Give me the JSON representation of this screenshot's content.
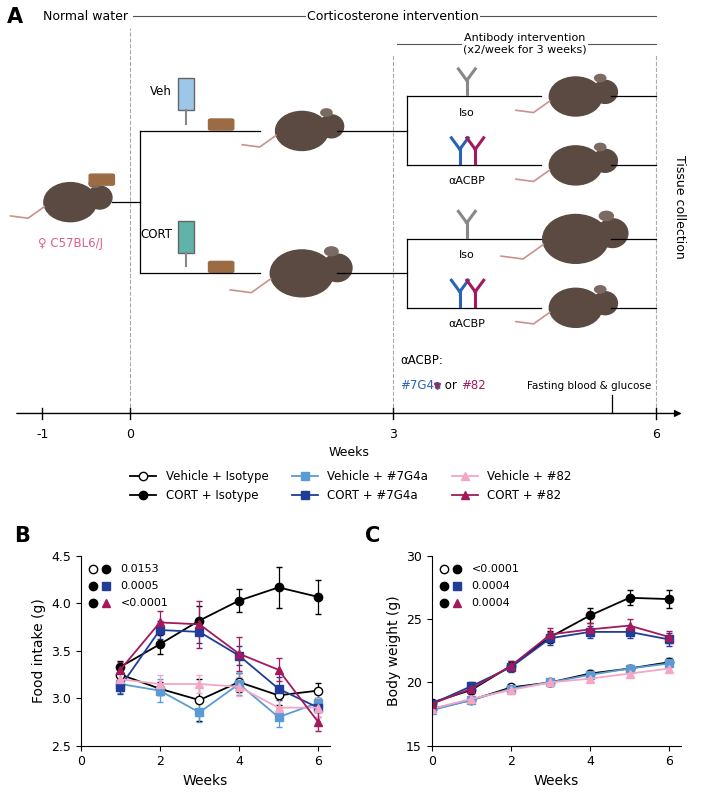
{
  "diagram": {
    "panel": "A",
    "phases": {
      "normal": "Normal water",
      "cort": "Corticosterone intervention",
      "antibody": "Antibody intervention\n(x2/week for 3 weeks)"
    },
    "mouse": "♀ C57BL6/J",
    "arms": [
      "Veh",
      "CORT"
    ],
    "treatments": [
      "Iso",
      "αACBP"
    ],
    "antibody_note": {
      "title": "αACBP:",
      "options": [
        "#7G4a",
        "#82"
      ],
      "joiner": "or",
      "colors": [
        "#2a62b8",
        "#a3195b"
      ]
    },
    "events": [
      {
        "week": 5.5,
        "label": "Fasting blood & glucose"
      },
      {
        "week": 6,
        "label": "Tissue collection"
      }
    ],
    "timeline": {
      "label": "Weeks",
      "ticks": [
        -1,
        0,
        3,
        6
      ]
    }
  },
  "chart_data": [
    {
      "type": "line",
      "panel": "B",
      "xlabel": "Weeks",
      "ylabel": "Food intake (g)",
      "x": [
        1,
        2,
        3,
        4,
        5,
        6
      ],
      "xlim": [
        0,
        6.3
      ],
      "xticks": [
        0,
        2,
        4,
        6
      ],
      "ylim": [
        2.5,
        4.5
      ],
      "yticks": [
        2.5,
        3.0,
        3.5,
        4.0,
        4.5
      ],
      "legend": "upper center",
      "series": [
        {
          "name": "Vehicle + Isotype",
          "color": "#ffffff",
          "marker": "circle",
          "values": [
            3.25,
            3.1,
            2.98,
            3.17,
            3.03,
            3.08
          ],
          "errors": [
            0.08,
            0.07,
            0.22,
            0.1,
            0.1,
            0.08
          ]
        },
        {
          "name": "CORT + Isotype",
          "color": "#000000",
          "marker": "circle",
          "values": [
            3.33,
            3.57,
            3.82,
            4.03,
            4.17,
            4.07
          ],
          "errors": [
            0.06,
            0.1,
            0.15,
            0.12,
            0.22,
            0.18
          ]
        },
        {
          "name": "Vehicle + #7G4a",
          "color": "#5b9bd5",
          "marker": "square",
          "values": [
            3.15,
            3.08,
            2.85,
            3.15,
            2.8,
            2.95
          ],
          "errors": [
            0.1,
            0.12,
            0.1,
            0.12,
            0.1,
            0.1
          ]
        },
        {
          "name": "CORT + #7G4a",
          "color": "#1f3d99",
          "marker": "square",
          "values": [
            3.12,
            3.72,
            3.7,
            3.45,
            3.1,
            2.9
          ],
          "errors": [
            0.08,
            0.1,
            0.12,
            0.1,
            0.12,
            0.1
          ]
        },
        {
          "name": "Vehicle + #82",
          "color": "#f4a6c6",
          "marker": "triangle",
          "values": [
            3.2,
            3.15,
            3.15,
            3.12,
            2.9,
            2.9
          ],
          "errors": [
            0.08,
            0.1,
            0.1,
            0.1,
            0.1,
            0.1
          ]
        },
        {
          "name": "CORT + #82",
          "color": "#a3195b",
          "marker": "triangle",
          "values": [
            3.3,
            3.8,
            3.78,
            3.47,
            3.3,
            2.75
          ],
          "errors": [
            0.08,
            0.12,
            0.25,
            0.18,
            0.12,
            0.1
          ]
        }
      ],
      "annotations": [
        {
          "groups": [
            "Vehicle + Isotype",
            "CORT + Isotype"
          ],
          "text": "0.0153"
        },
        {
          "groups": [
            "CORT + Isotype",
            "CORT + #7G4a"
          ],
          "text": "0.0005"
        },
        {
          "groups": [
            "CORT + Isotype",
            "CORT + #82"
          ],
          "text": "<0.0001"
        }
      ]
    },
    {
      "type": "line",
      "panel": "C",
      "xlabel": "Weeks",
      "ylabel": "Body weight (g)",
      "x": [
        0,
        1,
        2,
        3,
        4,
        5,
        6
      ],
      "xlim": [
        0,
        6.3
      ],
      "xticks": [
        0,
        2,
        4,
        6
      ],
      "ylim": [
        15,
        30
      ],
      "yticks": [
        15,
        20,
        25,
        30
      ],
      "series": [
        {
          "name": "Vehicle + Isotype",
          "color": "#ffffff",
          "marker": "circle",
          "values": [
            17.9,
            18.6,
            19.6,
            20.0,
            20.7,
            21.1,
            21.6
          ],
          "errors": [
            0.2,
            0.2,
            0.3,
            0.3,
            0.3,
            0.3,
            0.3
          ]
        },
        {
          "name": "CORT + Isotype",
          "color": "#000000",
          "marker": "circle",
          "values": [
            18.4,
            19.4,
            21.3,
            23.6,
            25.3,
            26.7,
            26.6
          ],
          "errors": [
            0.2,
            0.3,
            0.4,
            0.5,
            0.6,
            0.6,
            0.7
          ]
        },
        {
          "name": "Vehicle + #7G4a",
          "color": "#5b9bd5",
          "marker": "square",
          "values": [
            17.8,
            18.6,
            19.5,
            20.0,
            20.6,
            21.1,
            21.5
          ],
          "errors": [
            0.2,
            0.2,
            0.3,
            0.3,
            0.3,
            0.3,
            0.3
          ]
        },
        {
          "name": "CORT + #7G4a",
          "color": "#1f3d99",
          "marker": "square",
          "values": [
            18.3,
            19.7,
            21.2,
            23.5,
            24.0,
            24.0,
            23.4
          ],
          "errors": [
            0.2,
            0.3,
            0.4,
            0.5,
            0.5,
            0.5,
            0.5
          ]
        },
        {
          "name": "Vehicle + #82",
          "color": "#f4a6c6",
          "marker": "triangle",
          "values": [
            17.9,
            18.7,
            19.4,
            20.0,
            20.3,
            20.7,
            21.1
          ],
          "errors": [
            0.2,
            0.2,
            0.3,
            0.3,
            0.3,
            0.3,
            0.3
          ]
        },
        {
          "name": "CORT + #82",
          "color": "#a3195b",
          "marker": "triangle",
          "values": [
            18.3,
            19.5,
            21.3,
            23.8,
            24.2,
            24.5,
            23.6
          ],
          "errors": [
            0.2,
            0.3,
            0.4,
            0.5,
            0.5,
            0.5,
            0.5
          ]
        }
      ],
      "annotations": [
        {
          "groups": [
            "Vehicle + Isotype",
            "CORT + Isotype"
          ],
          "text": "<0.0001"
        },
        {
          "groups": [
            "CORT + Isotype",
            "CORT + #7G4a"
          ],
          "text": "0.0004"
        },
        {
          "groups": [
            "CORT + Isotype",
            "CORT + #82"
          ],
          "text": "0.0004"
        }
      ]
    }
  ]
}
